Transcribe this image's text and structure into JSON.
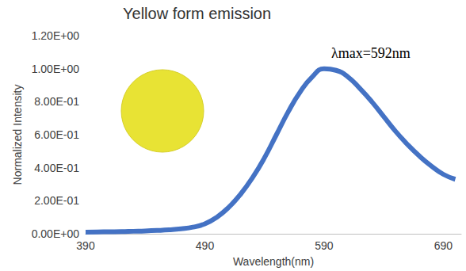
{
  "chart_data": {
    "type": "line",
    "title": "Yellow form emission",
    "x_label": "Wavelength(nm)",
    "y_label": "Normalized Intensity",
    "annotations": [
      "λmax=592nm"
    ],
    "x": [
      390,
      400,
      410,
      420,
      430,
      440,
      450,
      460,
      470,
      480,
      490,
      500,
      510,
      520,
      530,
      540,
      550,
      560,
      570,
      580,
      590,
      600,
      610,
      620,
      630,
      640,
      650,
      660,
      670,
      680,
      690,
      700
    ],
    "series": [
      {
        "name": "Yellow form",
        "color": "#4472c4",
        "values": [
          0.01,
          0.011,
          0.012,
          0.013,
          0.015,
          0.017,
          0.02,
          0.024,
          0.03,
          0.04,
          0.06,
          0.1,
          0.16,
          0.24,
          0.34,
          0.46,
          0.6,
          0.74,
          0.86,
          0.95,
          1.0,
          0.99,
          0.95,
          0.88,
          0.8,
          0.71,
          0.62,
          0.54,
          0.47,
          0.41,
          0.36,
          0.33
        ]
      }
    ],
    "xlim": [
      390,
      705
    ],
    "xticks": [
      390,
      490,
      590,
      690
    ],
    "ylim": [
      0,
      1.2
    ],
    "yticks": [
      {
        "value": 0,
        "label": "0.00E+00"
      },
      {
        "value": 0.2,
        "label": "2.00E-01"
      },
      {
        "value": 0.4,
        "label": "4.00E-01"
      },
      {
        "value": 0.6,
        "label": "6.00E-01"
      },
      {
        "value": 0.8,
        "label": "8.00E-01"
      },
      {
        "value": 1.0,
        "label": "1.00E+00"
      },
      {
        "value": 1.2,
        "label": "1.20E+00"
      }
    ],
    "grid": false,
    "line_style": "solid"
  }
}
